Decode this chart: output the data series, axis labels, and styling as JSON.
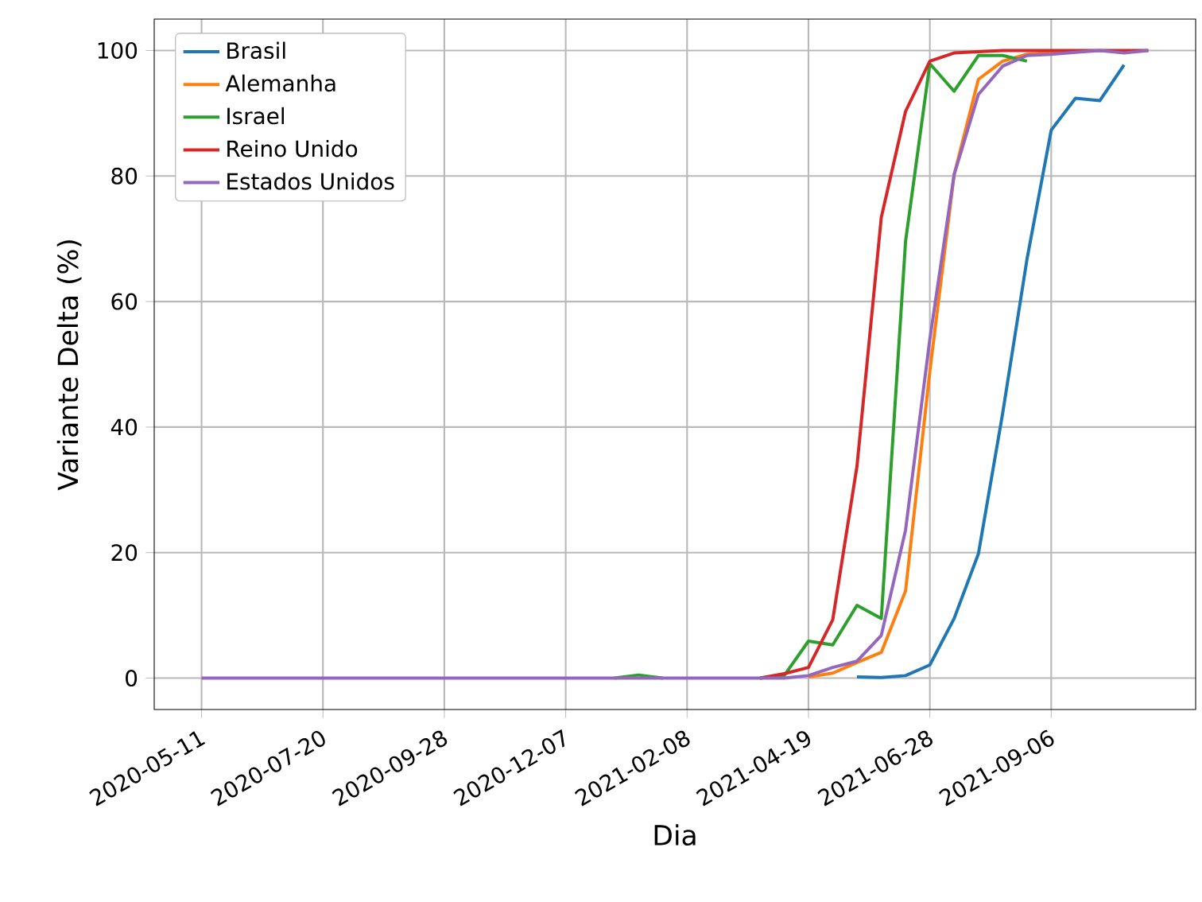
{
  "chart_data": {
    "type": "line",
    "xlabel": "Dia",
    "ylabel": "Variante Delta (%)",
    "categories": [
      "2020-05-11",
      null,
      null,
      null,
      null,
      "2020-07-20",
      null,
      null,
      null,
      null,
      "2020-09-28",
      null,
      null,
      null,
      null,
      "2020-12-07",
      null,
      null,
      null,
      null,
      "2021-02-08",
      null,
      null,
      null,
      null,
      "2021-04-19",
      null,
      null,
      null,
      null,
      "2021-06-28",
      null,
      null,
      null,
      null,
      "2021-09-06",
      null,
      null,
      null,
      null
    ],
    "series": [
      {
        "name": "Brasil",
        "color": "#1f77b4",
        "values": [
          null,
          null,
          null,
          null,
          null,
          null,
          null,
          null,
          null,
          null,
          null,
          null,
          null,
          null,
          null,
          null,
          null,
          null,
          null,
          null,
          null,
          null,
          null,
          null,
          null,
          null,
          null,
          0.2,
          0.1,
          0.4,
          2.1,
          9.5,
          19.8,
          42.2,
          66.7,
          87.3,
          92.4,
          92,
          97.7,
          null
        ]
      },
      {
        "name": "Alemanha",
        "color": "#ff7f0e",
        "values": [
          null,
          null,
          null,
          null,
          null,
          null,
          null,
          null,
          null,
          null,
          null,
          null,
          null,
          null,
          null,
          null,
          null,
          null,
          null,
          null,
          null,
          null,
          null,
          null,
          null,
          0.2,
          0.8,
          2.5,
          4.1,
          13.9,
          48.9,
          80.2,
          95.4,
          98.3,
          99.4,
          99.7,
          99.8,
          null,
          null,
          null
        ]
      },
      {
        "name": "Israel",
        "color": "#2ca02c",
        "values": [
          null,
          null,
          null,
          null,
          null,
          null,
          null,
          null,
          null,
          null,
          null,
          null,
          null,
          null,
          null,
          null,
          null,
          0,
          0.5,
          0,
          null,
          null,
          null,
          0,
          0.4,
          5.9,
          5.3,
          11.6,
          9.5,
          69.6,
          97.9,
          93.5,
          99.2,
          99.2,
          98.3,
          null,
          null,
          null,
          null,
          null
        ]
      },
      {
        "name": "Reino Unido",
        "color": "#d62728",
        "values": [
          null,
          null,
          null,
          null,
          null,
          null,
          null,
          null,
          null,
          null,
          null,
          null,
          null,
          null,
          null,
          null,
          null,
          null,
          null,
          null,
          null,
          null,
          null,
          0,
          0.7,
          1.7,
          9.3,
          33.8,
          73.4,
          90.3,
          98.3,
          99.6,
          99.8,
          100,
          100,
          100,
          100,
          100,
          100,
          100
        ]
      },
      {
        "name": "Estados Unidos",
        "color": "#9467bd",
        "values": [
          0,
          0,
          0,
          0,
          0,
          0,
          0,
          0,
          0,
          0,
          0,
          0,
          0,
          0,
          0,
          0,
          0,
          0,
          0,
          0,
          0,
          0,
          0,
          0,
          0,
          0.4,
          1.7,
          2.7,
          6.8,
          23.6,
          54,
          80.2,
          93,
          97.5,
          99.2,
          99.4,
          99.7,
          100,
          99.6,
          100
        ]
      }
    ],
    "ylim": [
      -5,
      105
    ],
    "yticks": [
      0,
      20,
      40,
      60,
      80,
      100
    ],
    "grid": true,
    "legend": "top left",
    "line_style": "solid",
    "marker": "none"
  }
}
